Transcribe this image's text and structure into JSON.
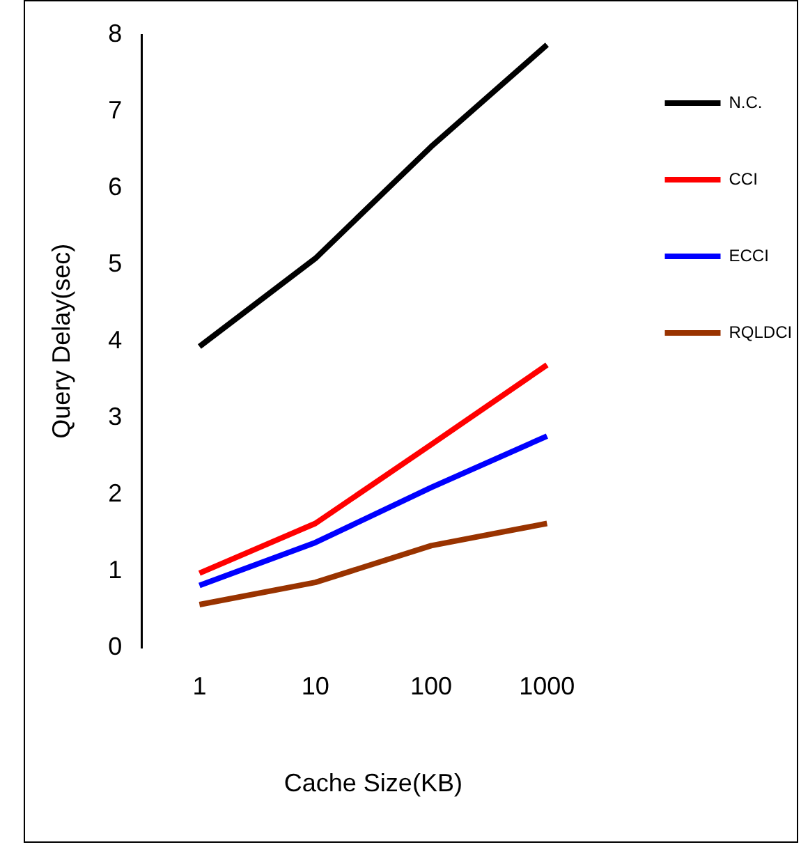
{
  "chart_data": {
    "type": "line",
    "xlabel": "Cache Size(KB)",
    "ylabel": "Query Delay(sec)",
    "categories": [
      "1",
      "10",
      "100",
      "1000"
    ],
    "series": [
      {
        "name": "N.C.",
        "color": "#000000",
        "values": [
          3.93,
          5.08,
          6.54,
          7.87
        ]
      },
      {
        "name": "CCI",
        "color": "#ff0000",
        "values": [
          0.97,
          1.62,
          2.65,
          3.69
        ]
      },
      {
        "name": "ECCI",
        "color": "#0000ff",
        "values": [
          0.81,
          1.37,
          2.09,
          2.76
        ]
      },
      {
        "name": "RQLDCI",
        "color": "#993300",
        "values": [
          0.56,
          0.85,
          1.33,
          1.62
        ]
      }
    ],
    "ylim": [
      0,
      8
    ],
    "yticks": [
      0,
      1,
      2,
      3,
      4,
      5,
      6,
      7,
      8
    ],
    "grid": false,
    "legend": "right",
    "marker": "none",
    "line_style": "solid"
  }
}
